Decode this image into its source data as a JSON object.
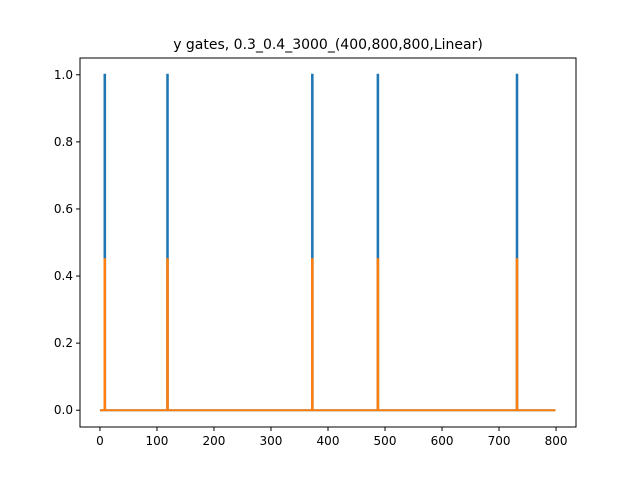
{
  "chart_data": {
    "type": "line",
    "title": "y gates,  0.3_0.4_3000_(400,800,800,Linear)",
    "xlabel": "",
    "ylabel": "",
    "xlim": [
      -35,
      835
    ],
    "ylim": [
      -0.05,
      1.05
    ],
    "grid": false,
    "legend": "none",
    "x_ticks": [
      0,
      100,
      200,
      300,
      400,
      500,
      600,
      700,
      800
    ],
    "x_tick_labels": [
      "0",
      "100",
      "200",
      "300",
      "400",
      "500",
      "600",
      "700",
      "800"
    ],
    "y_ticks": [
      0.0,
      0.2,
      0.4,
      0.6,
      0.8,
      1.0
    ],
    "y_tick_labels": [
      "0.0",
      "0.2",
      "0.4",
      "0.6",
      "0.8",
      "1.0"
    ],
    "series": [
      {
        "color": "#1f77b4",
        "x": [
          0,
          8,
          8,
          9,
          9,
          118,
          118,
          119,
          119,
          372,
          372,
          373,
          373,
          487,
          487,
          488,
          488,
          731,
          731,
          732,
          732,
          799
        ],
        "y": [
          0,
          0,
          1,
          1,
          0,
          0,
          1,
          1,
          0,
          0,
          1,
          1,
          0,
          0,
          1,
          1,
          0,
          0,
          1,
          1,
          0,
          0
        ]
      },
      {
        "color": "#ff7f0e",
        "x": [
          0,
          8,
          8,
          9,
          9,
          118,
          118,
          119,
          119,
          372,
          372,
          373,
          373,
          487,
          487,
          488,
          488,
          731,
          731,
          732,
          732,
          799
        ],
        "y": [
          0,
          0,
          0.45,
          0.45,
          0,
          0,
          0.45,
          0.45,
          0,
          0,
          0.45,
          0.45,
          0,
          0,
          0.45,
          0.45,
          0,
          0,
          0.45,
          0.45,
          0,
          0
        ]
      }
    ]
  }
}
